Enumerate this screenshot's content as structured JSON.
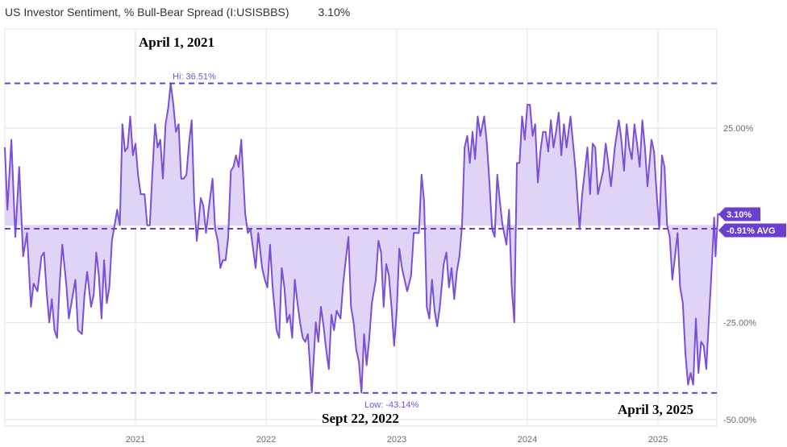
{
  "header": {
    "title": "US Investor Sentiment, % Bull-Bear Spread (I:USISBBS)",
    "value": "3.10%"
  },
  "colors": {
    "line": "#7b4fd6",
    "fill": "#d9ccf5",
    "ref": "#6a3fd0",
    "grid": "#e3e3e3"
  },
  "chart_data": {
    "type": "area",
    "title": "US Investor Sentiment, % Bull-Bear Spread (I:USISBBS)",
    "x_ticks": [
      "2021",
      "2022",
      "2023",
      "2024",
      "2025"
    ],
    "y_ticks": [
      "25.00%",
      "-25.00%",
      "-50.00%"
    ],
    "ylim": [
      -50,
      52
    ],
    "xlim": [
      2020.0,
      2025.46
    ],
    "series": [
      {
        "values": [
          [
            2020.0,
            20
          ],
          [
            2020.02,
            4
          ],
          [
            2020.05,
            22
          ],
          [
            2020.08,
            -3
          ],
          [
            2020.11,
            15
          ],
          [
            2020.14,
            -8
          ],
          [
            2020.17,
            -2
          ],
          [
            2020.2,
            -21
          ],
          [
            2020.22,
            -15
          ],
          [
            2020.25,
            -17
          ],
          [
            2020.28,
            -8
          ],
          [
            2020.3,
            -7
          ],
          [
            2020.32,
            -17
          ],
          [
            2020.34,
            -25
          ],
          [
            2020.36,
            -19
          ],
          [
            2020.38,
            -27
          ],
          [
            2020.4,
            -29
          ],
          [
            2020.42,
            -15
          ],
          [
            2020.44,
            -5
          ],
          [
            2020.47,
            -15
          ],
          [
            2020.49,
            -24
          ],
          [
            2020.51,
            -20
          ],
          [
            2020.54,
            -14
          ],
          [
            2020.56,
            -27
          ],
          [
            2020.59,
            -28
          ],
          [
            2020.61,
            -18
          ],
          [
            2020.63,
            -12
          ],
          [
            2020.66,
            -21
          ],
          [
            2020.68,
            -18
          ],
          [
            2020.7,
            -7
          ],
          [
            2020.72,
            -13
          ],
          [
            2020.74,
            -24
          ],
          [
            2020.76,
            -9
          ],
          [
            2020.78,
            -20
          ],
          [
            2020.8,
            -16
          ],
          [
            2020.82,
            -4
          ],
          [
            2020.84,
            0
          ],
          [
            2020.86,
            4
          ],
          [
            2020.88,
            0
          ],
          [
            2020.9,
            26
          ],
          [
            2020.92,
            19
          ],
          [
            2020.94,
            20
          ],
          [
            2020.96,
            28
          ],
          [
            2020.98,
            18
          ],
          [
            2021.0,
            21
          ],
          [
            2021.02,
            13
          ],
          [
            2021.04,
            8
          ],
          [
            2021.07,
            8
          ],
          [
            2021.09,
            0
          ],
          [
            2021.11,
            0
          ],
          [
            2021.13,
            14
          ],
          [
            2021.15,
            26
          ],
          [
            2021.17,
            20
          ],
          [
            2021.19,
            22
          ],
          [
            2021.21,
            12
          ],
          [
            2021.23,
            26
          ],
          [
            2021.25,
            30
          ],
          [
            2021.27,
            36.5
          ],
          [
            2021.29,
            31
          ],
          [
            2021.31,
            24
          ],
          [
            2021.33,
            26
          ],
          [
            2021.35,
            12
          ],
          [
            2021.37,
            12
          ],
          [
            2021.39,
            13
          ],
          [
            2021.41,
            21
          ],
          [
            2021.43,
            27
          ],
          [
            2021.45,
            6
          ],
          [
            2021.47,
            -4
          ],
          [
            2021.5,
            7
          ],
          [
            2021.52,
            5
          ],
          [
            2021.54,
            -2
          ],
          [
            2021.56,
            4
          ],
          [
            2021.59,
            12
          ],
          [
            2021.61,
            -1
          ],
          [
            2021.63,
            -4
          ],
          [
            2021.65,
            -11
          ],
          [
            2021.67,
            -9
          ],
          [
            2021.69,
            -9
          ],
          [
            2021.71,
            -3
          ],
          [
            2021.73,
            14
          ],
          [
            2021.75,
            15
          ],
          [
            2021.77,
            18
          ],
          [
            2021.79,
            15
          ],
          [
            2021.81,
            22
          ],
          [
            2021.84,
            3
          ],
          [
            2021.86,
            -2
          ],
          [
            2021.88,
            -1
          ],
          [
            2021.9,
            -6
          ],
          [
            2021.92,
            -11
          ],
          [
            2021.94,
            -2
          ],
          [
            2021.97,
            -11
          ],
          [
            2021.99,
            -14
          ],
          [
            2022.01,
            -16
          ],
          [
            2022.03,
            -5
          ],
          [
            2022.05,
            -16
          ],
          [
            2022.08,
            -27
          ],
          [
            2022.1,
            -29
          ],
          [
            2022.12,
            -11
          ],
          [
            2022.14,
            -16
          ],
          [
            2022.16,
            -25
          ],
          [
            2022.18,
            -23
          ],
          [
            2022.2,
            -29
          ],
          [
            2022.22,
            -14
          ],
          [
            2022.24,
            -20
          ],
          [
            2022.26,
            -25
          ],
          [
            2022.28,
            -29
          ],
          [
            2022.3,
            -30
          ],
          [
            2022.32,
            -28
          ],
          [
            2022.35,
            -43
          ],
          [
            2022.38,
            -25
          ],
          [
            2022.4,
            -30
          ],
          [
            2022.42,
            -21
          ],
          [
            2022.44,
            -26
          ],
          [
            2022.46,
            -32
          ],
          [
            2022.48,
            -37
          ],
          [
            2022.5,
            -23
          ],
          [
            2022.52,
            -27
          ],
          [
            2022.54,
            -22
          ],
          [
            2022.57,
            -24
          ],
          [
            2022.59,
            -15
          ],
          [
            2022.61,
            -9
          ],
          [
            2022.63,
            -3
          ],
          [
            2022.65,
            -21
          ],
          [
            2022.67,
            -25
          ],
          [
            2022.69,
            -32
          ],
          [
            2022.71,
            -35
          ],
          [
            2022.73,
            -43.1
          ],
          [
            2022.75,
            -28
          ],
          [
            2022.77,
            -36
          ],
          [
            2022.79,
            -29
          ],
          [
            2022.81,
            -20
          ],
          [
            2022.84,
            -14
          ],
          [
            2022.86,
            -4
          ],
          [
            2022.88,
            -7
          ],
          [
            2022.9,
            -21
          ],
          [
            2022.92,
            -10
          ],
          [
            2022.94,
            -13
          ],
          [
            2022.96,
            -21
          ],
          [
            2022.98,
            -31
          ],
          [
            2023.0,
            -22
          ],
          [
            2023.02,
            -6
          ],
          [
            2023.04,
            -11
          ],
          [
            2023.06,
            -14
          ],
          [
            2023.08,
            -17
          ],
          [
            2023.11,
            -13
          ],
          [
            2023.13,
            -2
          ],
          [
            2023.15,
            -2
          ],
          [
            2023.17,
            -2
          ],
          [
            2023.19,
            13
          ],
          [
            2023.21,
            6
          ],
          [
            2023.23,
            -21
          ],
          [
            2023.25,
            -24
          ],
          [
            2023.27,
            -14
          ],
          [
            2023.29,
            -22
          ],
          [
            2023.31,
            -26
          ],
          [
            2023.33,
            -21
          ],
          [
            2023.36,
            -10
          ],
          [
            2023.38,
            -7
          ],
          [
            2023.4,
            -16
          ],
          [
            2023.42,
            -11
          ],
          [
            2023.44,
            -19
          ],
          [
            2023.46,
            -12
          ],
          [
            2023.48,
            -8
          ],
          [
            2023.5,
            0
          ],
          [
            2023.52,
            20
          ],
          [
            2023.54,
            23
          ],
          [
            2023.56,
            16
          ],
          [
            2023.58,
            24
          ],
          [
            2023.6,
            17
          ],
          [
            2023.62,
            28
          ],
          [
            2023.64,
            23
          ],
          [
            2023.67,
            28
          ],
          [
            2023.69,
            21
          ],
          [
            2023.71,
            11
          ],
          [
            2023.73,
            -1
          ],
          [
            2023.75,
            -3
          ],
          [
            2023.77,
            13
          ],
          [
            2023.79,
            6
          ],
          [
            2023.81,
            0
          ],
          [
            2023.84,
            -5
          ],
          [
            2023.86,
            4
          ],
          [
            2023.88,
            -16
          ],
          [
            2023.9,
            -25
          ],
          [
            2023.92,
            16
          ],
          [
            2023.94,
            16
          ],
          [
            2023.96,
            28
          ],
          [
            2023.98,
            22
          ],
          [
            2024.0,
            31
          ],
          [
            2024.02,
            31
          ],
          [
            2024.04,
            23
          ],
          [
            2024.06,
            26
          ],
          [
            2024.08,
            11
          ],
          [
            2024.1,
            19
          ],
          [
            2024.12,
            24
          ],
          [
            2024.14,
            24
          ],
          [
            2024.16,
            19
          ],
          [
            2024.18,
            27
          ],
          [
            2024.2,
            20
          ],
          [
            2024.22,
            24
          ],
          [
            2024.24,
            29
          ],
          [
            2024.26,
            18
          ],
          [
            2024.28,
            26
          ],
          [
            2024.3,
            20
          ],
          [
            2024.33,
            28
          ],
          [
            2024.35,
            21
          ],
          [
            2024.37,
            14
          ],
          [
            2024.4,
            -1
          ],
          [
            2024.42,
            8
          ],
          [
            2024.44,
            14
          ],
          [
            2024.46,
            20
          ],
          [
            2024.48,
            8
          ],
          [
            2024.5,
            21
          ],
          [
            2024.52,
            20
          ],
          [
            2024.54,
            8
          ],
          [
            2024.56,
            11
          ],
          [
            2024.58,
            14
          ],
          [
            2024.6,
            21
          ],
          [
            2024.62,
            16
          ],
          [
            2024.64,
            10
          ],
          [
            2024.67,
            20
          ],
          [
            2024.7,
            27
          ],
          [
            2024.72,
            22
          ],
          [
            2024.74,
            14
          ],
          [
            2024.76,
            26
          ],
          [
            2024.78,
            20
          ],
          [
            2024.8,
            17
          ],
          [
            2024.82,
            26
          ],
          [
            2024.84,
            21
          ],
          [
            2024.86,
            15
          ],
          [
            2024.88,
            27
          ],
          [
            2024.9,
            20
          ],
          [
            2024.92,
            10
          ],
          [
            2024.95,
            22
          ],
          [
            2024.97,
            19
          ],
          [
            2024.99,
            8
          ],
          [
            2025.01,
            -1
          ],
          [
            2025.03,
            18
          ],
          [
            2025.05,
            15
          ],
          [
            2025.07,
            0
          ],
          [
            2025.09,
            -3
          ],
          [
            2025.11,
            -14
          ],
          [
            2025.13,
            -8
          ],
          [
            2025.15,
            -2
          ],
          [
            2025.17,
            -16
          ],
          [
            2025.19,
            -20
          ],
          [
            2025.21,
            -33
          ],
          [
            2025.23,
            -41
          ],
          [
            2025.25,
            -38
          ],
          [
            2025.27,
            -41
          ],
          [
            2025.29,
            -24
          ],
          [
            2025.31,
            -38
          ],
          [
            2025.33,
            -30
          ],
          [
            2025.35,
            -31
          ],
          [
            2025.37,
            -37
          ],
          [
            2025.39,
            -24
          ],
          [
            2025.41,
            -12
          ],
          [
            2025.43,
            2
          ],
          [
            2025.44,
            -8
          ],
          [
            2025.46,
            3.1
          ]
        ]
      }
    ],
    "reference_lines": [
      {
        "label": "Hi: 36.51%",
        "value": 36.51
      },
      {
        "label": "-0.91% AVG",
        "value": -0.91
      },
      {
        "label": "Low: -43.14%",
        "value": -43.14
      }
    ],
    "current_label": "3.10%",
    "current_value": 3.1,
    "annotations": [
      "April 1, 2021",
      "Sept 22, 2022",
      "April 3, 2025"
    ],
    "grid": true
  }
}
